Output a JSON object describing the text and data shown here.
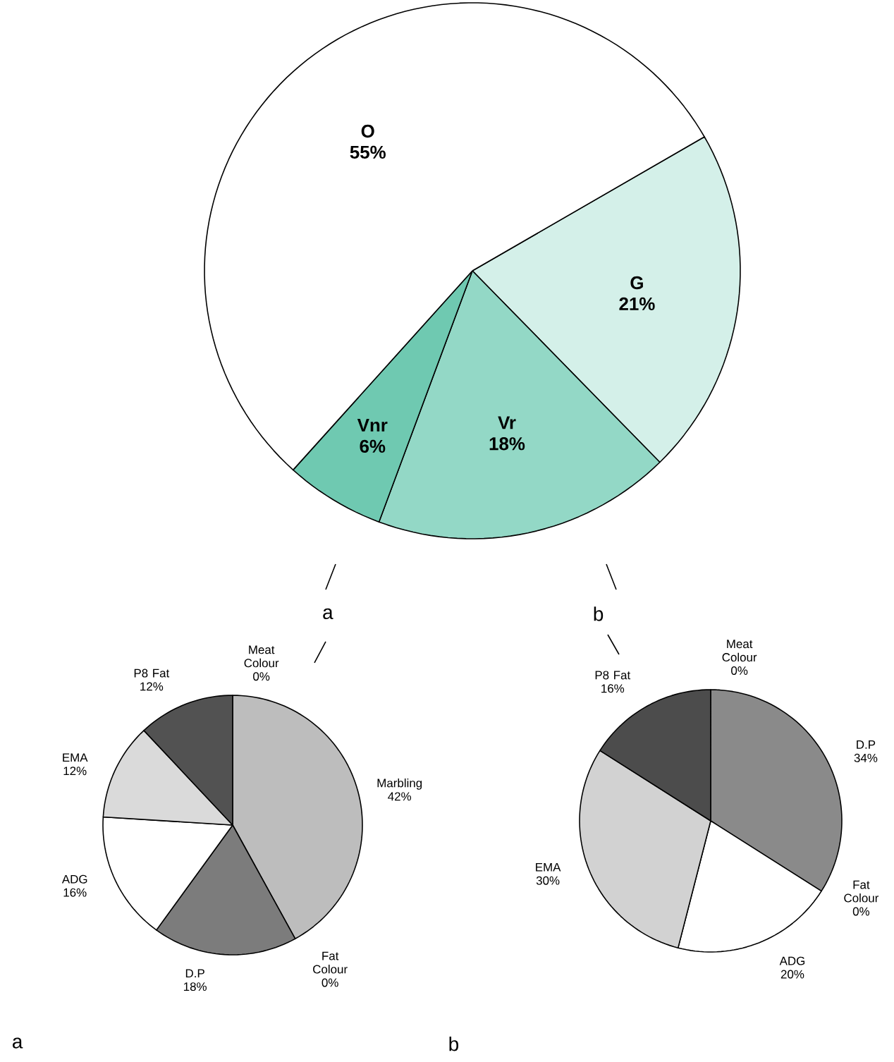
{
  "chart_data": [
    {
      "type": "pie",
      "categories": [
        "G",
        "Vr",
        "Vnr",
        "O"
      ],
      "values": [
        21,
        18,
        6,
        55
      ],
      "value_labels": [
        "21%",
        "18%",
        "6%",
        "55%"
      ],
      "colors": [
        "#d4f0e9",
        "#93d8c6",
        "#6fc9b1",
        "#ffffff"
      ],
      "annotations": [
        "a",
        "b"
      ]
    },
    {
      "type": "pie",
      "categories": [
        "Meat Colour",
        "Marbling",
        "Fat Colour",
        "D.P",
        "ADG",
        "EMA",
        "P8 Fat"
      ],
      "values": [
        0,
        42,
        0,
        18,
        16,
        12,
        12
      ],
      "value_labels": [
        "0%",
        "42%",
        "0%",
        "18%",
        "16%",
        "12%",
        "12%"
      ],
      "colors": [
        "#888888",
        "#bdbdbd",
        "#888888",
        "#7c7c7c",
        "#ffffff",
        "#dadada",
        "#525252"
      ],
      "annotations": [
        "a"
      ]
    },
    {
      "type": "pie",
      "categories": [
        "Meat Colour",
        "D.P",
        "Fat Colour",
        "ADG",
        "EMA",
        "P8 Fat"
      ],
      "values": [
        0,
        34,
        0,
        20,
        30,
        16
      ],
      "value_labels": [
        "0%",
        "34%",
        "0%",
        "20%",
        "30%",
        "16%"
      ],
      "colors": [
        "#888888",
        "#8a8a8a",
        "#888888",
        "#ffffff",
        "#d2d2d2",
        "#4c4c4c"
      ],
      "annotations": [
        "b"
      ]
    }
  ]
}
